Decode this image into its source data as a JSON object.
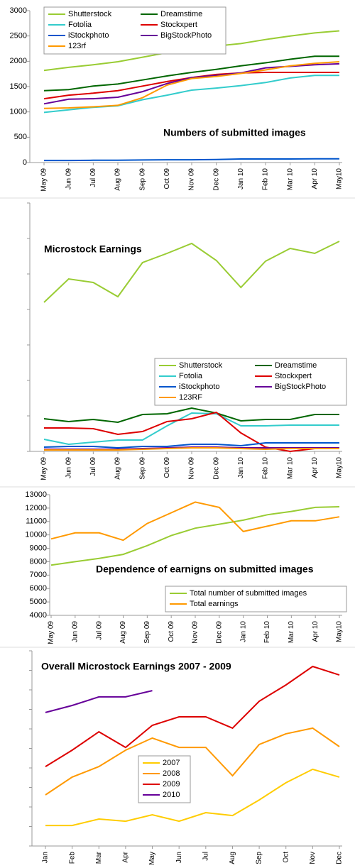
{
  "chart_data": [
    {
      "type": "line",
      "title": "Numbers of submitted images",
      "legend": "upper left",
      "ytick_labels": true,
      "categories": [
        "May 09",
        "Jun 09",
        "Jul 09",
        "Aug 09",
        "Sep 09",
        "Oct 09",
        "Nov 09",
        "Dec 09",
        "Jan 10",
        "Feb 10",
        "Mar 10",
        "Apr 10",
        "May10"
      ],
      "ylim": [
        0,
        3000
      ],
      "yticks": [
        0,
        500,
        1000,
        1500,
        2000,
        2500,
        3000
      ],
      "series": [
        {
          "name": "Shutterstock",
          "color": "#99cc33",
          "values": [
            1820,
            1880,
            1930,
            1990,
            2080,
            2170,
            2250,
            2300,
            2350,
            2430,
            2500,
            2560,
            2600
          ]
        },
        {
          "name": "Dreamstime",
          "color": "#006600",
          "values": [
            1420,
            1440,
            1510,
            1550,
            1630,
            1710,
            1780,
            1840,
            1910,
            1970,
            2040,
            2100,
            2100
          ]
        },
        {
          "name": "Fotolia",
          "color": "#33cccc",
          "values": [
            990,
            1040,
            1090,
            1120,
            1240,
            1330,
            1430,
            1470,
            1520,
            1580,
            1670,
            1720,
            1720
          ]
        },
        {
          "name": "Stockxpert",
          "color": "#dd0000",
          "values": [
            1260,
            1330,
            1370,
            1420,
            1510,
            1600,
            1680,
            1740,
            1770,
            1780,
            1780,
            1780,
            1780
          ]
        },
        {
          "name": "iStockphoto",
          "color": "#0055cc",
          "values": [
            40,
            40,
            45,
            45,
            50,
            55,
            55,
            60,
            70,
            70,
            70,
            75,
            75
          ]
        },
        {
          "name": "BigStockPhoto",
          "color": "#660099",
          "values": [
            1160,
            1250,
            1260,
            1290,
            1400,
            1560,
            1680,
            1720,
            1770,
            1870,
            1900,
            1930,
            1950
          ]
        },
        {
          "name": "123rf",
          "color": "#ff9900",
          "values": [
            1070,
            1080,
            1100,
            1130,
            1280,
            1530,
            1660,
            1700,
            1760,
            1830,
            1910,
            1960,
            1990
          ]
        }
      ]
    },
    {
      "type": "line",
      "title": "Microstock Earnings",
      "legend": "lower right",
      "ytick_labels": false,
      "categories": [
        "May 09",
        "Jun 09",
        "Jul 09",
        "Aug 09",
        "Sep 09",
        "Oct 09",
        "Nov 09",
        "Dec 09",
        "Jan 10",
        "Feb 10",
        "Mar 10",
        "Apr 10",
        "May10"
      ],
      "ylim": [
        0,
        7
      ],
      "yticks": [
        0,
        1,
        2,
        3,
        4,
        5,
        6,
        7
      ],
      "series": [
        {
          "name": "Shutterstock",
          "color": "#99cc33",
          "values": [
            4.2,
            4.86,
            4.76,
            4.36,
            5.32,
            5.58,
            5.86,
            5.38,
            4.62,
            5.36,
            5.72,
            5.58,
            5.92
          ]
        },
        {
          "name": "Dreamstime",
          "color": "#006600",
          "values": [
            0.92,
            0.84,
            0.9,
            0.82,
            1.04,
            1.06,
            1.22,
            1.08,
            0.86,
            0.9,
            0.9,
            1.04,
            1.04
          ]
        },
        {
          "name": "Fotolia",
          "color": "#33cccc",
          "values": [
            0.34,
            0.2,
            0.26,
            0.32,
            0.32,
            0.72,
            1.08,
            1.06,
            0.72,
            0.72,
            0.74,
            0.74,
            0.74
          ]
        },
        {
          "name": "Stockxpert",
          "color": "#dd0000",
          "values": [
            0.66,
            0.66,
            0.64,
            0.48,
            0.56,
            0.84,
            0.92,
            1.1,
            0.52,
            0.12,
            0,
            0.08,
            0.08
          ]
        },
        {
          "name": "iStockphoto",
          "color": "#0055cc",
          "values": [
            0.12,
            0.14,
            0.14,
            0.1,
            0.14,
            0.14,
            0.2,
            0.2,
            0.16,
            0.24,
            0.24,
            0.24,
            0.24
          ]
        },
        {
          "name": "BigStockPhoto",
          "color": "#660099",
          "values": [
            0.06,
            0.06,
            0.06,
            0.06,
            0.08,
            0.1,
            0.12,
            0.12,
            0.1,
            0.1,
            0.1,
            0.1,
            0.1
          ]
        },
        {
          "name": "123RF",
          "color": "#ff9900",
          "values": [
            0.04,
            0.04,
            0.04,
            0.04,
            0.06,
            0.08,
            0.1,
            0.1,
            0.08,
            0.06,
            0.08,
            0.08,
            0.08
          ]
        }
      ]
    },
    {
      "type": "line",
      "title": "Dependence of earnigns on submitted images",
      "legend": "lower right",
      "ytick_labels": true,
      "categories": [
        "May 09",
        "Jun 09",
        "Jul 09",
        "Aug 09",
        "Sep 09",
        "Oct 09",
        "Nov 09",
        "Dec 09",
        "Jan 10",
        "Feb 10",
        "Mar 10",
        "Apr 10",
        "May10"
      ],
      "ylim": [
        4000,
        13000
      ],
      "yticks": [
        4000,
        5000,
        6000,
        7000,
        8000,
        9000,
        10000,
        11000,
        12000,
        13000
      ],
      "series": [
        {
          "name": "Total number of submitted images",
          "color": "#99cc33",
          "values": [
            7750,
            8000,
            8250,
            8550,
            9200,
            9950,
            10500,
            10800,
            11100,
            11500,
            11750,
            12050,
            12100
          ]
        },
        {
          "name": "Total earnings",
          "color": "#ff9900",
          "values": [
            9700,
            10150,
            10150,
            9600,
            10850,
            11650,
            12450,
            12050,
            10250,
            10650,
            11050,
            11050,
            11350
          ]
        }
      ]
    },
    {
      "type": "line",
      "title": "Overall Microstock Earnings 2007 - 2009",
      "legend": "center left",
      "ytick_labels": false,
      "categories": [
        "Jan",
        "Feb",
        "Mar",
        "Apr",
        "May",
        "Jun",
        "Jul",
        "Aug",
        "Sep",
        "Oct",
        "Nov",
        "Dec"
      ],
      "ylim": [
        0,
        10
      ],
      "yticks": [
        0,
        1,
        2,
        3,
        4,
        5,
        6,
        7,
        8,
        9,
        10
      ],
      "series": [
        {
          "name": "2007",
          "color": "#ffcc00",
          "values": [
            1.05,
            1.05,
            1.38,
            1.27,
            1.6,
            1.27,
            1.71,
            1.56,
            2.36,
            3.24,
            3.93,
            3.53
          ]
        },
        {
          "name": "2008",
          "color": "#ff9900",
          "values": [
            2.62,
            3.53,
            4.07,
            4.91,
            5.53,
            5.05,
            5.05,
            3.6,
            5.2,
            5.75,
            6.04,
            5.09
          ]
        },
        {
          "name": "2009",
          "color": "#dd0000",
          "values": [
            4.07,
            4.91,
            5.85,
            5.05,
            6.18,
            6.62,
            6.62,
            6.04,
            7.42,
            8.25,
            9.2,
            8.76
          ]
        },
        {
          "name": "2010",
          "color": "#660099",
          "values": [
            6.84,
            7.2,
            7.64,
            7.64,
            7.96,
            null,
            null,
            null,
            null,
            null,
            null,
            null
          ]
        }
      ]
    }
  ]
}
